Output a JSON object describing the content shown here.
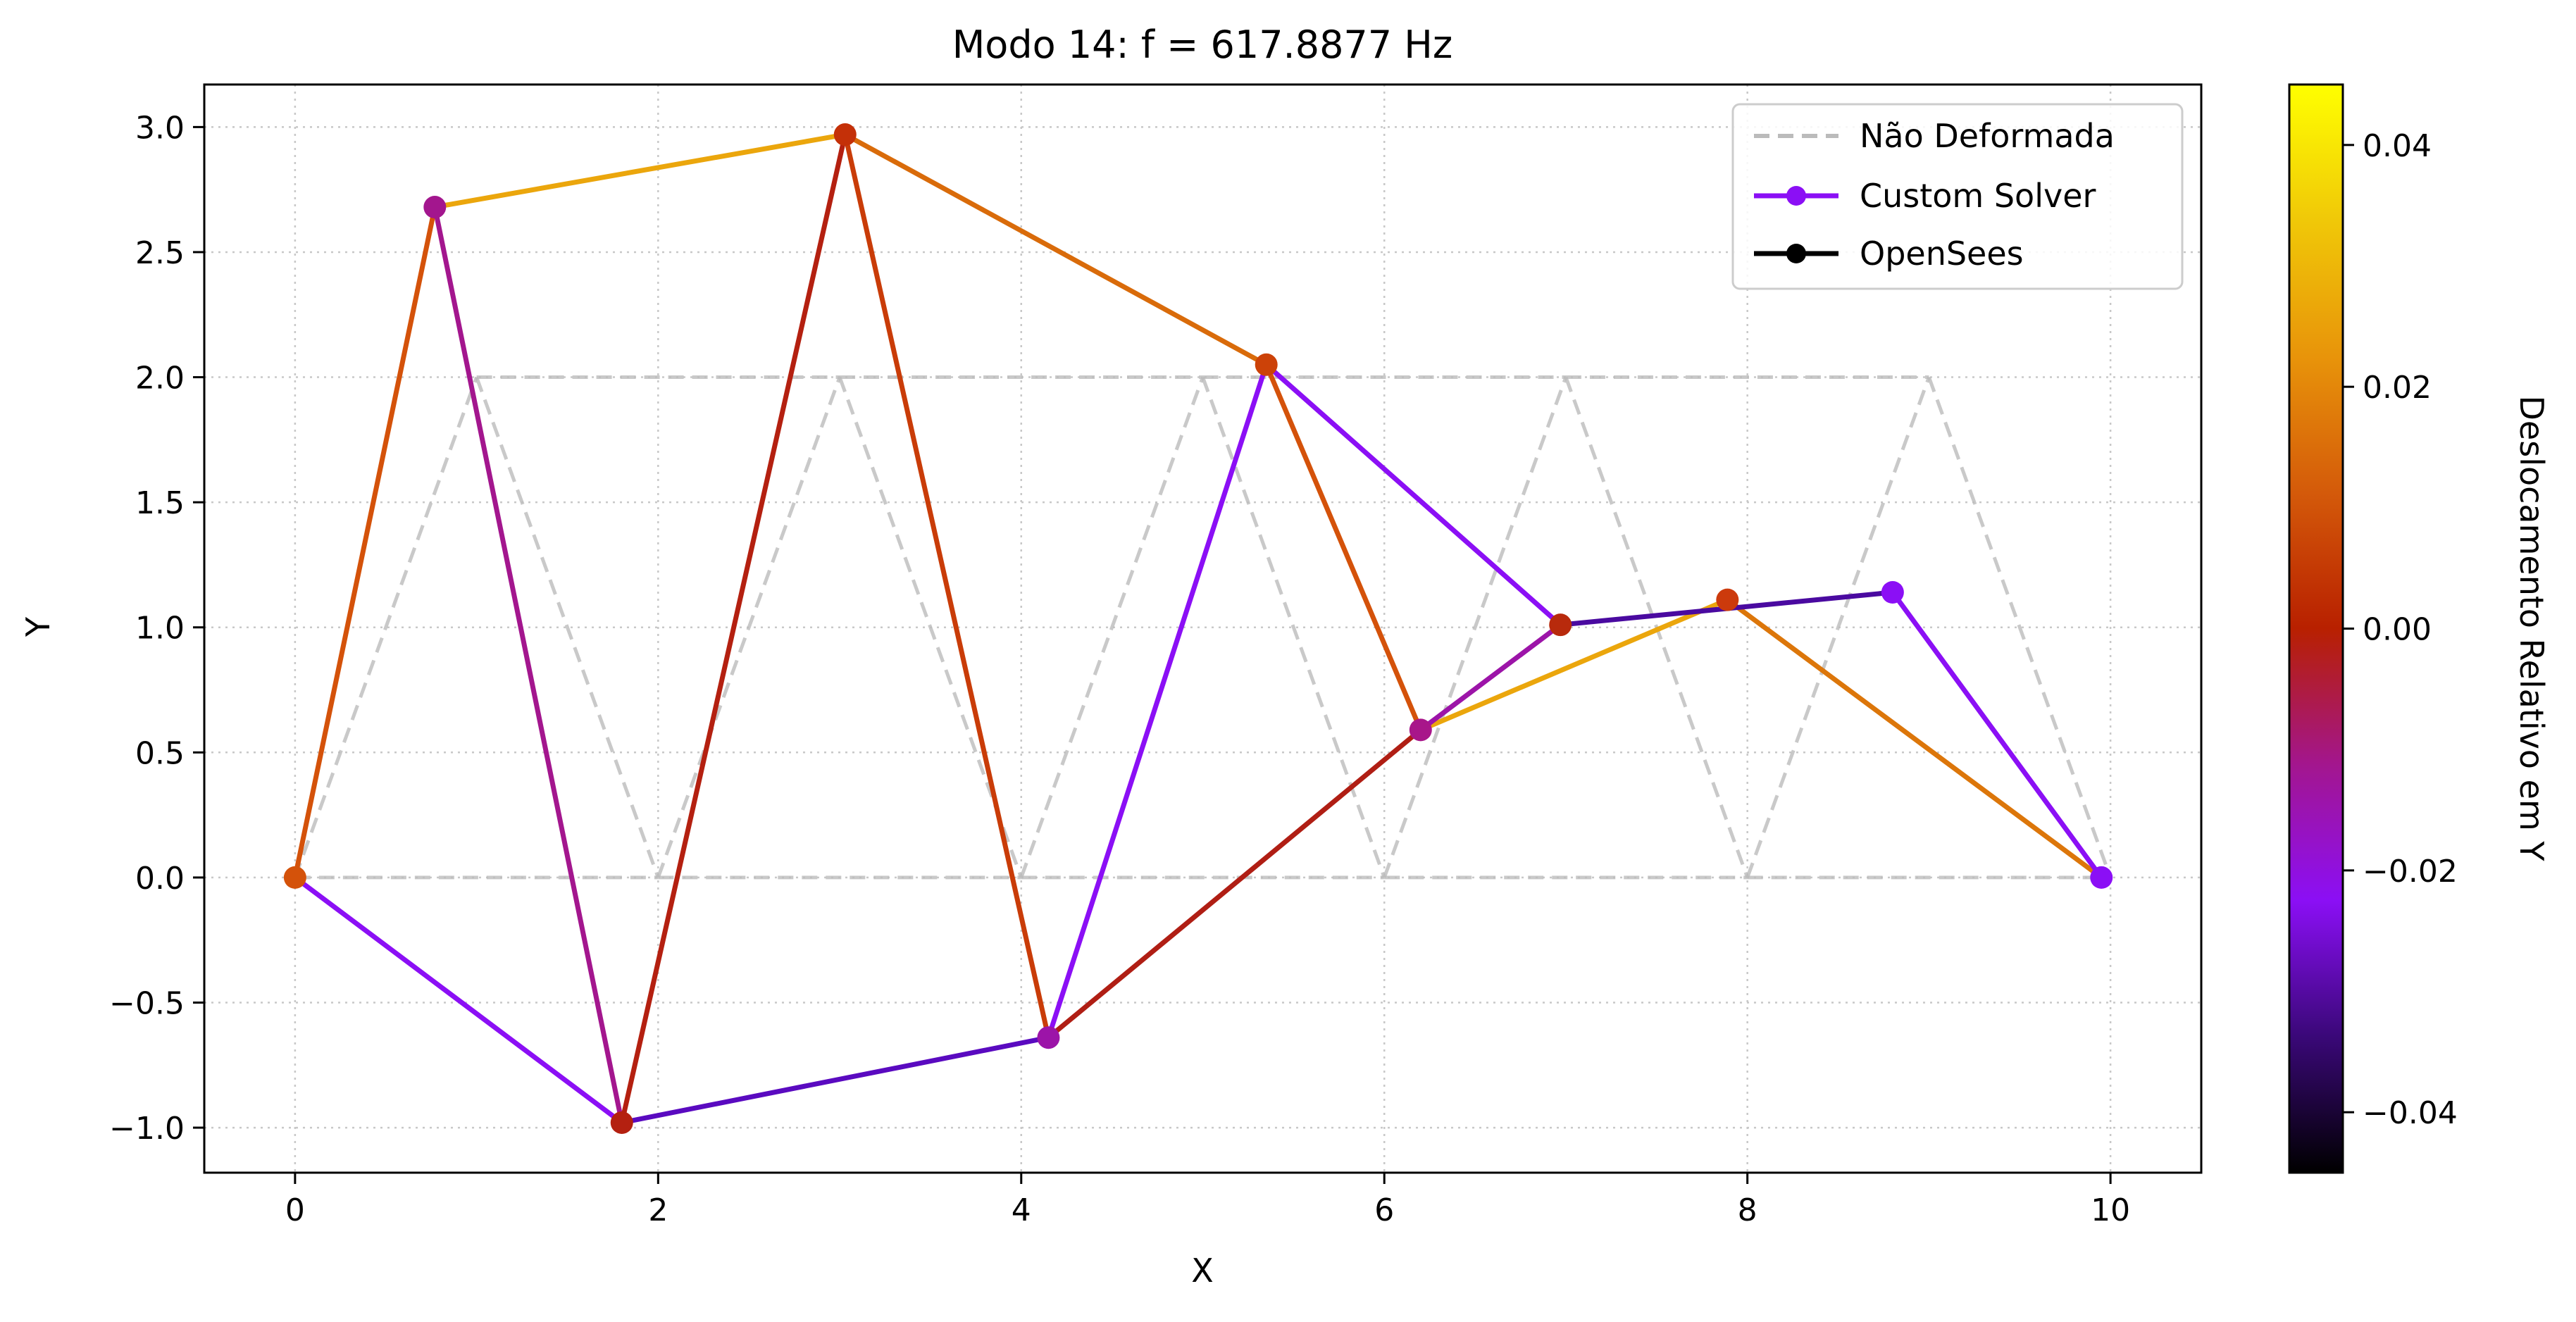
{
  "chart_data": {
    "type": "line",
    "title": "Modo 14: f = 617.8877 Hz",
    "xlabel": "X",
    "ylabel": "Y",
    "xlim": [
      -0.5,
      10.5
    ],
    "ylim": [
      -1.18,
      3.17
    ],
    "x_ticks": [
      0,
      2,
      4,
      6,
      8,
      10
    ],
    "x_tick_labels": [
      "0",
      "2",
      "4",
      "6",
      "8",
      "10"
    ],
    "y_ticks": [
      -1.0,
      -0.5,
      0.0,
      0.5,
      1.0,
      1.5,
      2.0,
      2.5,
      3.0
    ],
    "y_tick_labels": [
      "−1.0",
      "−0.5",
      "0.0",
      "0.5",
      "1.0",
      "1.5",
      "2.0",
      "2.5",
      "3.0"
    ],
    "grid": true,
    "legend_position": "top-right",
    "legend": [
      {
        "label": "Não Deformada",
        "style": "dashed",
        "color": "#bbbbbb"
      },
      {
        "label": "Custom Solver",
        "style": "solid-marker",
        "color": "#8b0ff5"
      },
      {
        "label": "OpenSees",
        "style": "solid-marker",
        "color": "#000000"
      }
    ],
    "undeformed": {
      "nodes": [
        [
          0,
          0
        ],
        [
          2,
          0
        ],
        [
          4,
          0
        ],
        [
          6,
          0
        ],
        [
          8,
          0
        ],
        [
          10,
          0
        ],
        [
          1,
          2
        ],
        [
          3,
          2
        ],
        [
          5,
          2
        ],
        [
          7,
          2
        ],
        [
          9,
          2
        ]
      ],
      "segments": [
        [
          0,
          1
        ],
        [
          1,
          2
        ],
        [
          2,
          3
        ],
        [
          3,
          4
        ],
        [
          4,
          5
        ],
        [
          6,
          7
        ],
        [
          7,
          8
        ],
        [
          8,
          9
        ],
        [
          9,
          10
        ],
        [
          0,
          6
        ],
        [
          6,
          1
        ],
        [
          1,
          7
        ],
        [
          7,
          2
        ],
        [
          2,
          8
        ],
        [
          8,
          3
        ],
        [
          3,
          9
        ],
        [
          9,
          4
        ],
        [
          4,
          10
        ],
        [
          10,
          5
        ]
      ]
    },
    "deformed": {
      "nodes": [
        {
          "x": 0.0,
          "y": 0.0,
          "color": "#d4520a"
        },
        {
          "x": 1.8,
          "y": -0.98,
          "color": "#b42010"
        },
        {
          "x": 4.15,
          "y": -0.64,
          "color": "#9c14a8"
        },
        {
          "x": 6.2,
          "y": 0.59,
          "color": "#a8168a"
        },
        {
          "x": 7.89,
          "y": 1.11,
          "color": "#cc3a0c"
        },
        {
          "x": 9.95,
          "y": 0.0,
          "color": "#8b0ff5"
        },
        {
          "x": 0.77,
          "y": 2.68,
          "color": "#a3168e"
        },
        {
          "x": 3.03,
          "y": 2.97,
          "color": "#c43008"
        },
        {
          "x": 5.35,
          "y": 2.05,
          "color": "#cc4208"
        },
        {
          "x": 6.97,
          "y": 1.01,
          "color": "#b82a0c"
        },
        {
          "x": 8.8,
          "y": 1.14,
          "color": "#8b0ff5"
        }
      ],
      "segments": [
        {
          "a": 0,
          "b": 1,
          "color": "#8b0ff5"
        },
        {
          "a": 1,
          "b": 2,
          "color": "#5a0ac0"
        },
        {
          "a": 2,
          "b": 3,
          "color": "#b01e14"
        },
        {
          "a": 3,
          "b": 4,
          "color": "#eba60c"
        },
        {
          "a": 4,
          "b": 5,
          "color": "#dc760a"
        },
        {
          "a": 6,
          "b": 7,
          "color": "#eba60c"
        },
        {
          "a": 7,
          "b": 8,
          "color": "#d96b0a"
        },
        {
          "a": 8,
          "b": 9,
          "color": "#8b0ff5"
        },
        {
          "a": 9,
          "b": 10,
          "color": "#4a0aa0"
        },
        {
          "a": 0,
          "b": 6,
          "color": "#d4520a"
        },
        {
          "a": 6,
          "b": 1,
          "color": "#a3168e"
        },
        {
          "a": 1,
          "b": 7,
          "color": "#b42010"
        },
        {
          "a": 7,
          "b": 2,
          "color": "#c93c08"
        },
        {
          "a": 2,
          "b": 8,
          "color": "#8b0ff5"
        },
        {
          "a": 8,
          "b": 3,
          "color": "#d4520a"
        },
        {
          "a": 3,
          "b": 9,
          "color": "#9c14a8"
        },
        {
          "a": 10,
          "b": 5,
          "color": "#8b0ff5"
        }
      ]
    },
    "colorbar": {
      "label": "Deslocamento Relativo em Y",
      "min": -0.045,
      "max": 0.045,
      "ticks": [
        -0.04,
        -0.02,
        0.0,
        0.02,
        0.04
      ],
      "tick_labels": [
        "−0.04",
        "−0.02",
        "0.00",
        "0.02",
        "0.04"
      ],
      "colormap": [
        "#000000",
        "#3a0878",
        "#8b0ff5",
        "#a3168e",
        "#b82000",
        "#d45a0a",
        "#e8940a",
        "#f0c808",
        "#ffff00"
      ]
    }
  }
}
